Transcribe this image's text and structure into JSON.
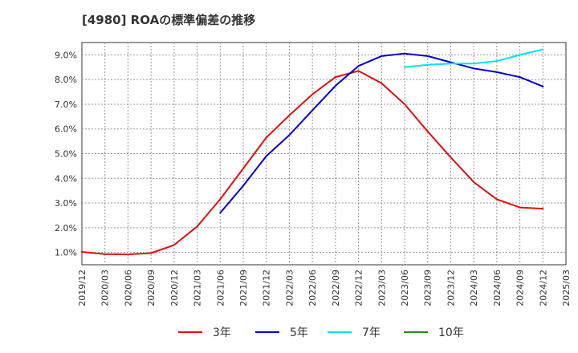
{
  "chart_data": {
    "type": "line",
    "title": "[4980]  ROAの標準偏差の推移",
    "xlabel": "",
    "ylabel": "",
    "grid": true,
    "legend_position": "bottom",
    "x_range": [
      "2019/12",
      "2025/03"
    ],
    "y_range": [
      0.5,
      9.5
    ],
    "x_ticks": [
      "2019/12",
      "2020/03",
      "2020/06",
      "2020/09",
      "2020/12",
      "2021/03",
      "2021/06",
      "2021/09",
      "2021/12",
      "2022/03",
      "2022/06",
      "2022/09",
      "2022/12",
      "2023/03",
      "2023/06",
      "2023/09",
      "2023/12",
      "2024/03",
      "2024/06",
      "2024/09",
      "2024/12",
      "2025/03"
    ],
    "y_ticks": [
      {
        "value": 1,
        "label": "1.0%"
      },
      {
        "value": 2,
        "label": "2.0%"
      },
      {
        "value": 3,
        "label": "3.0%"
      },
      {
        "value": 4,
        "label": "4.0%"
      },
      {
        "value": 5,
        "label": "5.0%"
      },
      {
        "value": 6,
        "label": "6.0%"
      },
      {
        "value": 7,
        "label": "7.0%"
      },
      {
        "value": 8,
        "label": "8.0%"
      },
      {
        "value": 9,
        "label": "9.0%"
      }
    ],
    "series": [
      {
        "name": "3年",
        "color": "#dd1111",
        "x": [
          "2019/12",
          "2020/03",
          "2020/06",
          "2020/09",
          "2020/12",
          "2021/03",
          "2021/06",
          "2021/09",
          "2021/12",
          "2022/03",
          "2022/06",
          "2022/09",
          "2022/12",
          "2023/03",
          "2023/06",
          "2023/09",
          "2023/12",
          "2024/03",
          "2024/06",
          "2024/09",
          "2024/12"
        ],
        "values": [
          1.02,
          0.93,
          0.92,
          0.97,
          1.3,
          2.05,
          3.15,
          4.4,
          5.65,
          6.55,
          7.4,
          8.1,
          8.35,
          7.85,
          7.0,
          5.9,
          4.85,
          3.85,
          3.15,
          2.82,
          2.77
        ]
      },
      {
        "name": "5年",
        "color": "#0000cc",
        "x": [
          "2021/06",
          "2021/09",
          "2021/12",
          "2022/03",
          "2022/06",
          "2022/09",
          "2022/12",
          "2023/03",
          "2023/06",
          "2023/09",
          "2023/12",
          "2024/03",
          "2024/06",
          "2024/09",
          "2024/12"
        ],
        "values": [
          2.6,
          3.7,
          4.9,
          5.75,
          6.75,
          7.75,
          8.55,
          8.95,
          9.05,
          8.95,
          8.7,
          8.45,
          8.3,
          8.1,
          7.72
        ]
      },
      {
        "name": "7年",
        "color": "#00e5ee",
        "x": [
          "2023/06",
          "2023/09",
          "2023/12",
          "2024/03",
          "2024/06",
          "2024/09",
          "2024/12"
        ],
        "values": [
          8.5,
          8.6,
          8.65,
          8.65,
          8.75,
          9.0,
          9.22
        ]
      },
      {
        "name": "10年",
        "color": "#228b22",
        "x": [],
        "values": []
      }
    ]
  }
}
